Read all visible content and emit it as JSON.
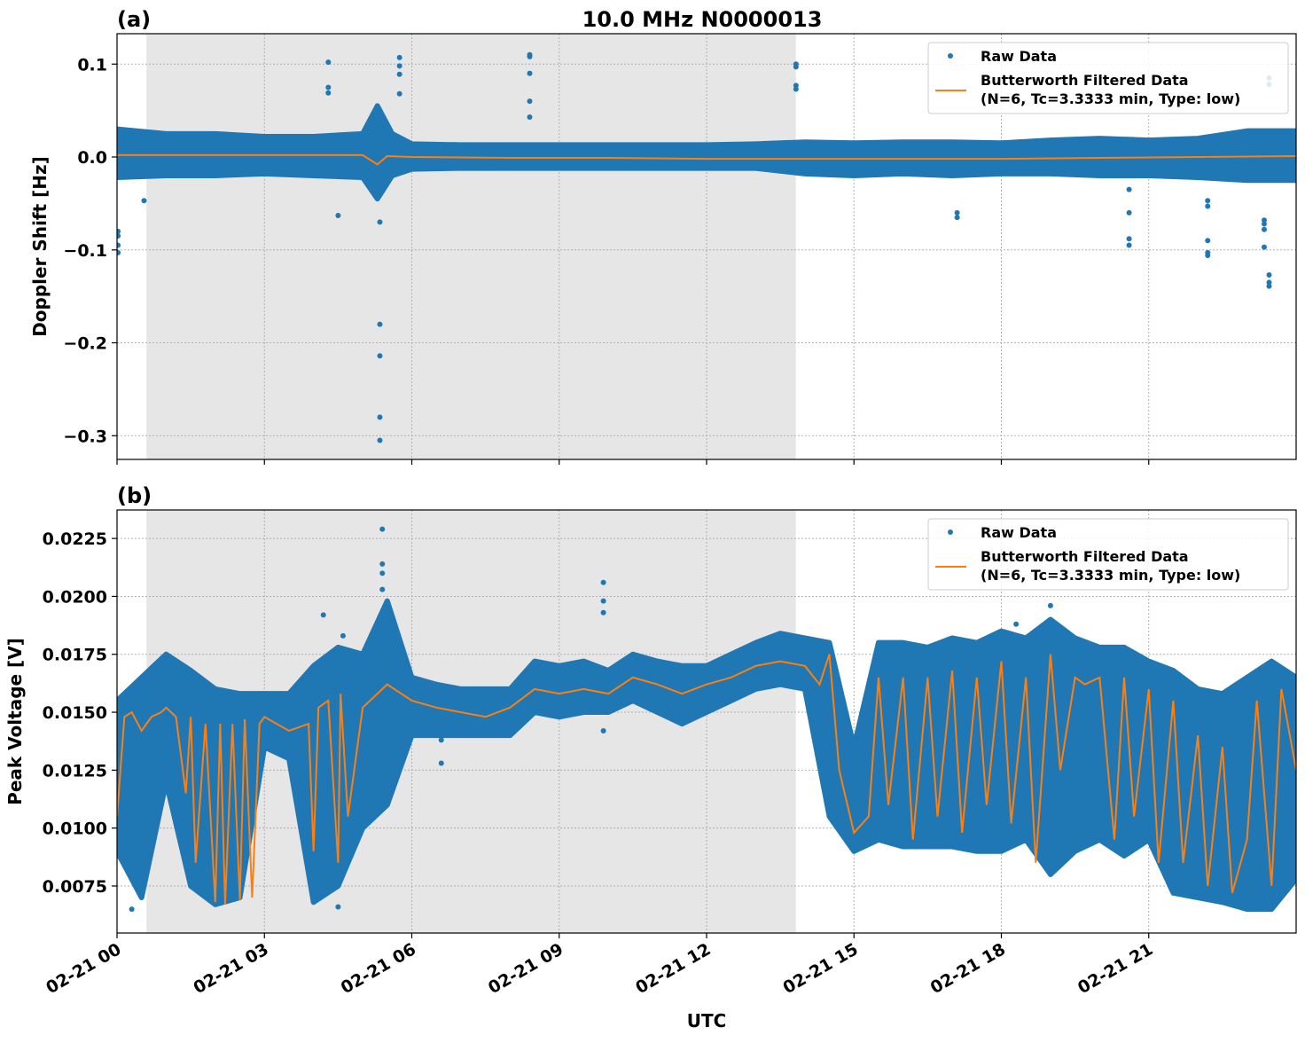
{
  "title": "10.0 MHz N0000013",
  "chart_data": [
    {
      "panel_label": "(a)",
      "type": "scatter",
      "ylabel": "Doppler Shift [Hz]",
      "xlabel": "",
      "xlim_hours_utc": [
        0,
        24
      ],
      "ylim": [
        -0.3255,
        0.1327
      ],
      "yticks": [
        0.1,
        0.0,
        -0.1,
        -0.2,
        -0.3
      ],
      "ytick_labels": [
        "0.1",
        "0.0",
        "−0.1",
        "−0.2",
        "−0.3"
      ],
      "grid": true,
      "shaded_interval_utc": [
        "00:36",
        "13:49"
      ],
      "shade_color": "#e6e6e6",
      "legend": {
        "position": "top-right",
        "entries": [
          "Raw Data",
          "Butterworth Filtered Data\n(N=6, Tc=3.3333 min, Type: low)"
        ]
      },
      "legend_raw": "Raw Data",
      "legend_filtered_line1": "Butterworth Filtered Data",
      "legend_filtered_line2": "(N=6, Tc=3.3333 min, Type: low)",
      "series": [
        {
          "name": "Raw Data",
          "color": "#1f77b4",
          "x_hours": [
            0,
            1,
            2,
            3,
            4,
            5,
            5.3,
            5.6,
            6,
            7,
            8,
            9,
            10,
            11,
            12,
            13,
            14,
            15,
            16,
            17,
            18,
            19,
            20,
            21,
            22,
            23,
            24
          ],
          "low": [
            -0.022,
            -0.02,
            -0.02,
            -0.018,
            -0.02,
            -0.022,
            -0.045,
            -0.02,
            -0.013,
            -0.012,
            -0.012,
            -0.012,
            -0.012,
            -0.012,
            -0.012,
            -0.012,
            -0.018,
            -0.02,
            -0.018,
            -0.02,
            -0.018,
            -0.018,
            -0.02,
            -0.02,
            -0.022,
            -0.025,
            -0.025
          ],
          "high": [
            0.03,
            0.025,
            0.025,
            0.022,
            0.022,
            0.025,
            0.055,
            0.025,
            0.014,
            0.013,
            0.013,
            0.013,
            0.013,
            0.013,
            0.013,
            0.014,
            0.016,
            0.015,
            0.016,
            0.016,
            0.015,
            0.018,
            0.02,
            0.018,
            0.02,
            0.028,
            0.028
          ],
          "outliers": [
            [
              0.02,
              -0.08
            ],
            [
              0.02,
              -0.085
            ],
            [
              0.02,
              -0.095
            ],
            [
              0.02,
              -0.103
            ],
            [
              0.55,
              -0.047
            ],
            [
              4.3,
              0.102
            ],
            [
              4.3,
              0.075
            ],
            [
              4.3,
              0.069
            ],
            [
              4.5,
              -0.063
            ],
            [
              5.35,
              -0.07
            ],
            [
              5.35,
              -0.18
            ],
            [
              5.35,
              -0.214
            ],
            [
              5.35,
              -0.28
            ],
            [
              5.35,
              -0.305
            ],
            [
              5.75,
              0.107
            ],
            [
              5.75,
              0.098
            ],
            [
              5.75,
              0.089
            ],
            [
              5.75,
              0.068
            ],
            [
              8.4,
              0.11
            ],
            [
              8.4,
              0.108
            ],
            [
              8.4,
              0.09
            ],
            [
              8.4,
              0.06
            ],
            [
              8.4,
              0.043
            ],
            [
              13.82,
              0.1
            ],
            [
              13.82,
              0.097
            ],
            [
              13.82,
              0.077
            ],
            [
              13.82,
              0.073
            ],
            [
              17.1,
              -0.06
            ],
            [
              17.1,
              -0.065
            ],
            [
              20.6,
              -0.035
            ],
            [
              20.6,
              -0.06
            ],
            [
              20.6,
              -0.088
            ],
            [
              20.6,
              -0.095
            ],
            [
              22.2,
              -0.047
            ],
            [
              22.2,
              -0.053
            ],
            [
              22.2,
              -0.09
            ],
            [
              22.2,
              -0.103
            ],
            [
              22.2,
              -0.106
            ],
            [
              23.35,
              -0.068
            ],
            [
              23.35,
              -0.072
            ],
            [
              23.35,
              -0.078
            ],
            [
              23.35,
              -0.097
            ],
            [
              23.45,
              -0.127
            ],
            [
              23.45,
              -0.135
            ],
            [
              23.45,
              -0.139
            ],
            [
              23.45,
              0.085
            ],
            [
              23.45,
              0.078
            ]
          ]
        },
        {
          "name": "Butterworth Filtered Data",
          "color": "#ff7f0e",
          "x_hours": [
            0,
            2,
            4,
            5,
            5.3,
            5.5,
            6,
            8,
            10,
            12,
            14,
            16,
            18,
            20,
            22,
            24
          ],
          "values": [
            0.002,
            0.002,
            0.002,
            0.002,
            -0.008,
            0.001,
            0.0,
            -0.001,
            -0.001,
            -0.002,
            -0.002,
            -0.002,
            -0.002,
            -0.001,
            0.0,
            0.001
          ]
        }
      ]
    },
    {
      "panel_label": "(b)",
      "type": "scatter",
      "ylabel": "Peak Voltage [V]",
      "xlabel": "UTC",
      "xlim_hours_utc": [
        0,
        24
      ],
      "ylim": [
        0.00547,
        0.02373
      ],
      "yticks": [
        0.0225,
        0.02,
        0.0175,
        0.015,
        0.0125,
        0.01,
        0.0075
      ],
      "ytick_labels": [
        "0.0225",
        "0.0200",
        "0.0175",
        "0.0150",
        "0.0125",
        "0.0100",
        "0.0075"
      ],
      "xticks_hours": [
        0,
        3,
        6,
        9,
        12,
        15,
        18,
        21
      ],
      "xtick_labels": [
        "02-21 00",
        "02-21 03",
        "02-21 06",
        "02-21 09",
        "02-21 12",
        "02-21 15",
        "02-21 18",
        "02-21 21"
      ],
      "grid": true,
      "shaded_interval_utc": [
        "00:36",
        "13:49"
      ],
      "shade_color": "#e6e6e6",
      "legend": {
        "position": "top-right",
        "entries": [
          "Raw Data",
          "Butterworth Filtered Data\n(N=6, Tc=3.3333 min, Type: low)"
        ]
      },
      "legend_raw": "Raw Data",
      "legend_filtered_line1": "Butterworth Filtered Data",
      "legend_filtered_line2": "(N=6, Tc=3.3333 min, Type: low)",
      "series": [
        {
          "name": "Raw Data",
          "color": "#1f77b4",
          "x_hours": [
            0,
            0.5,
            1,
            1.5,
            2,
            2.5,
            3,
            3.5,
            4,
            4.5,
            5,
            5.5,
            6,
            6.5,
            7,
            7.5,
            8,
            8.5,
            9,
            9.5,
            10,
            10.5,
            11,
            11.5,
            12,
            12.5,
            13,
            13.5,
            14,
            14.5,
            15,
            15.5,
            16,
            16.5,
            17,
            17.5,
            18,
            18.5,
            19,
            19.5,
            20,
            20.5,
            21,
            21.5,
            22,
            22.5,
            23,
            23.5,
            24
          ],
          "low": [
            0.009,
            0.007,
            0.012,
            0.0075,
            0.0067,
            0.007,
            0.0135,
            0.013,
            0.0068,
            0.0075,
            0.01,
            0.011,
            0.014,
            0.014,
            0.014,
            0.014,
            0.014,
            0.015,
            0.0148,
            0.015,
            0.015,
            0.0155,
            0.015,
            0.0145,
            0.015,
            0.0155,
            0.016,
            0.0162,
            0.016,
            0.0105,
            0.009,
            0.0095,
            0.0092,
            0.0092,
            0.0092,
            0.009,
            0.009,
            0.0095,
            0.008,
            0.009,
            0.0095,
            0.0088,
            0.0095,
            0.0072,
            0.007,
            0.0068,
            0.0065,
            0.0065,
            0.0078
          ],
          "high": [
            0.0155,
            0.0165,
            0.0175,
            0.0168,
            0.016,
            0.0158,
            0.0158,
            0.0158,
            0.017,
            0.0178,
            0.0175,
            0.0198,
            0.0165,
            0.0162,
            0.016,
            0.016,
            0.016,
            0.0172,
            0.017,
            0.0172,
            0.0168,
            0.0175,
            0.0172,
            0.017,
            0.017,
            0.0175,
            0.018,
            0.0184,
            0.0182,
            0.018,
            0.0135,
            0.018,
            0.018,
            0.0178,
            0.0182,
            0.018,
            0.0185,
            0.0182,
            0.019,
            0.0182,
            0.0178,
            0.0178,
            0.0172,
            0.0168,
            0.016,
            0.0158,
            0.0165,
            0.0172,
            0.0165
          ],
          "outliers": [
            [
              5.4,
              0.0229
            ],
            [
              5.4,
              0.0214
            ],
            [
              5.4,
              0.021
            ],
            [
              5.4,
              0.0203
            ],
            [
              9.9,
              0.0206
            ],
            [
              9.9,
              0.0198
            ],
            [
              9.9,
              0.0193
            ],
            [
              9.9,
              0.0142
            ],
            [
              4.2,
              0.0192
            ],
            [
              4.6,
              0.0183
            ],
            [
              6.6,
              0.0138
            ],
            [
              6.6,
              0.0128
            ],
            [
              19.0,
              0.0196
            ],
            [
              18.3,
              0.0188
            ],
            [
              0.3,
              0.0065
            ],
            [
              4.5,
              0.0066
            ]
          ]
        },
        {
          "name": "Butterworth Filtered Data",
          "color": "#ff7f0e",
          "x_hours": [
            0,
            0.15,
            0.3,
            0.5,
            0.7,
            0.9,
            1.0,
            1.2,
            1.4,
            1.5,
            1.6,
            1.8,
            2.0,
            2.1,
            2.2,
            2.35,
            2.5,
            2.6,
            2.75,
            2.9,
            3.0,
            3.5,
            3.9,
            4.0,
            4.1,
            4.3,
            4.5,
            4.55,
            4.7,
            5.0,
            5.5,
            6.0,
            6.5,
            7.0,
            7.5,
            8.0,
            8.5,
            9.0,
            9.5,
            10.0,
            10.5,
            11.0,
            11.5,
            12.0,
            12.5,
            13.0,
            13.5,
            14.0,
            14.3,
            14.5,
            14.7,
            15.0,
            15.3,
            15.5,
            15.7,
            16.0,
            16.2,
            16.5,
            16.7,
            17.0,
            17.2,
            17.5,
            17.7,
            18.0,
            18.2,
            18.5,
            18.7,
            19.0,
            19.2,
            19.5,
            19.7,
            20.0,
            20.3,
            20.5,
            20.7,
            21.0,
            21.2,
            21.5,
            21.7,
            22.0,
            22.2,
            22.5,
            22.7,
            23.0,
            23.2,
            23.5,
            23.7,
            24.0
          ],
          "values": [
            0.0105,
            0.0148,
            0.015,
            0.0142,
            0.0148,
            0.015,
            0.0152,
            0.0148,
            0.0115,
            0.0148,
            0.0085,
            0.0145,
            0.0068,
            0.0145,
            0.0067,
            0.0145,
            0.0069,
            0.0147,
            0.007,
            0.0145,
            0.0148,
            0.0142,
            0.0145,
            0.009,
            0.0152,
            0.0155,
            0.0085,
            0.0158,
            0.0105,
            0.0152,
            0.0162,
            0.0155,
            0.0152,
            0.015,
            0.0148,
            0.0152,
            0.016,
            0.0158,
            0.016,
            0.0158,
            0.0165,
            0.0162,
            0.0158,
            0.0162,
            0.0165,
            0.017,
            0.0172,
            0.017,
            0.0162,
            0.0175,
            0.0125,
            0.0098,
            0.0105,
            0.0165,
            0.011,
            0.0165,
            0.0095,
            0.0165,
            0.0105,
            0.0168,
            0.0098,
            0.0165,
            0.011,
            0.0172,
            0.0102,
            0.0165,
            0.0085,
            0.0175,
            0.0125,
            0.0165,
            0.0162,
            0.0165,
            0.0095,
            0.0165,
            0.0105,
            0.016,
            0.0085,
            0.0155,
            0.0085,
            0.014,
            0.0075,
            0.0135,
            0.0072,
            0.0095,
            0.0155,
            0.0075,
            0.016,
            0.0125
          ]
        }
      ]
    }
  ]
}
